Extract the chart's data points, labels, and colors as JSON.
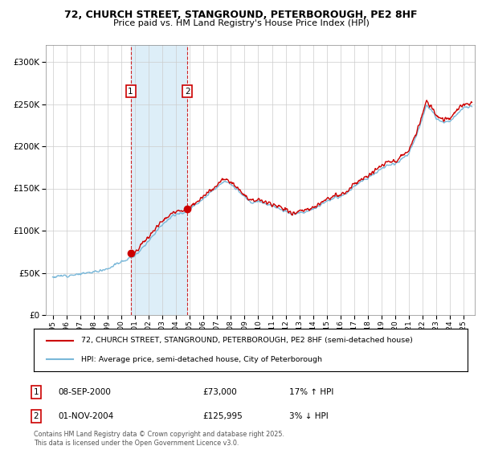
{
  "title_line1": "72, CHURCH STREET, STANGROUND, PETERBOROUGH, PE2 8HF",
  "title_line2": "Price paid vs. HM Land Registry's House Price Index (HPI)",
  "legend_line1": "72, CHURCH STREET, STANGROUND, PETERBOROUGH, PE2 8HF (semi-detached house)",
  "legend_line2": "HPI: Average price, semi-detached house, City of Peterborough",
  "footnote": "Contains HM Land Registry data © Crown copyright and database right 2025.\nThis data is licensed under the Open Government Licence v3.0.",
  "annotation1_label": "1",
  "annotation1_date": "08-SEP-2000",
  "annotation1_price": "£73,000",
  "annotation1_hpi": "17% ↑ HPI",
  "annotation2_label": "2",
  "annotation2_date": "01-NOV-2004",
  "annotation2_price": "£125,995",
  "annotation2_hpi": "3% ↓ HPI",
  "sale1_x": 2000.69,
  "sale1_y": 73000,
  "sale2_x": 2004.83,
  "sale2_y": 125995,
  "hpi_color": "#7ab8d9",
  "price_color": "#cc0000",
  "shade_color": "#ddeef8",
  "ylim_min": 0,
  "ylim_max": 320000,
  "xlim_min": 1994.5,
  "xlim_max": 2025.8,
  "yticks": [
    0,
    50000,
    100000,
    150000,
    200000,
    250000,
    300000
  ],
  "ytick_labels": [
    "£0",
    "£50K",
    "£100K",
    "£150K",
    "£200K",
    "£250K",
    "£300K"
  ],
  "xticks": [
    1995,
    1996,
    1997,
    1998,
    1999,
    2000,
    2001,
    2002,
    2003,
    2004,
    2005,
    2006,
    2007,
    2008,
    2009,
    2010,
    2011,
    2012,
    2013,
    2014,
    2015,
    2016,
    2017,
    2018,
    2019,
    2020,
    2021,
    2022,
    2023,
    2024,
    2025
  ]
}
